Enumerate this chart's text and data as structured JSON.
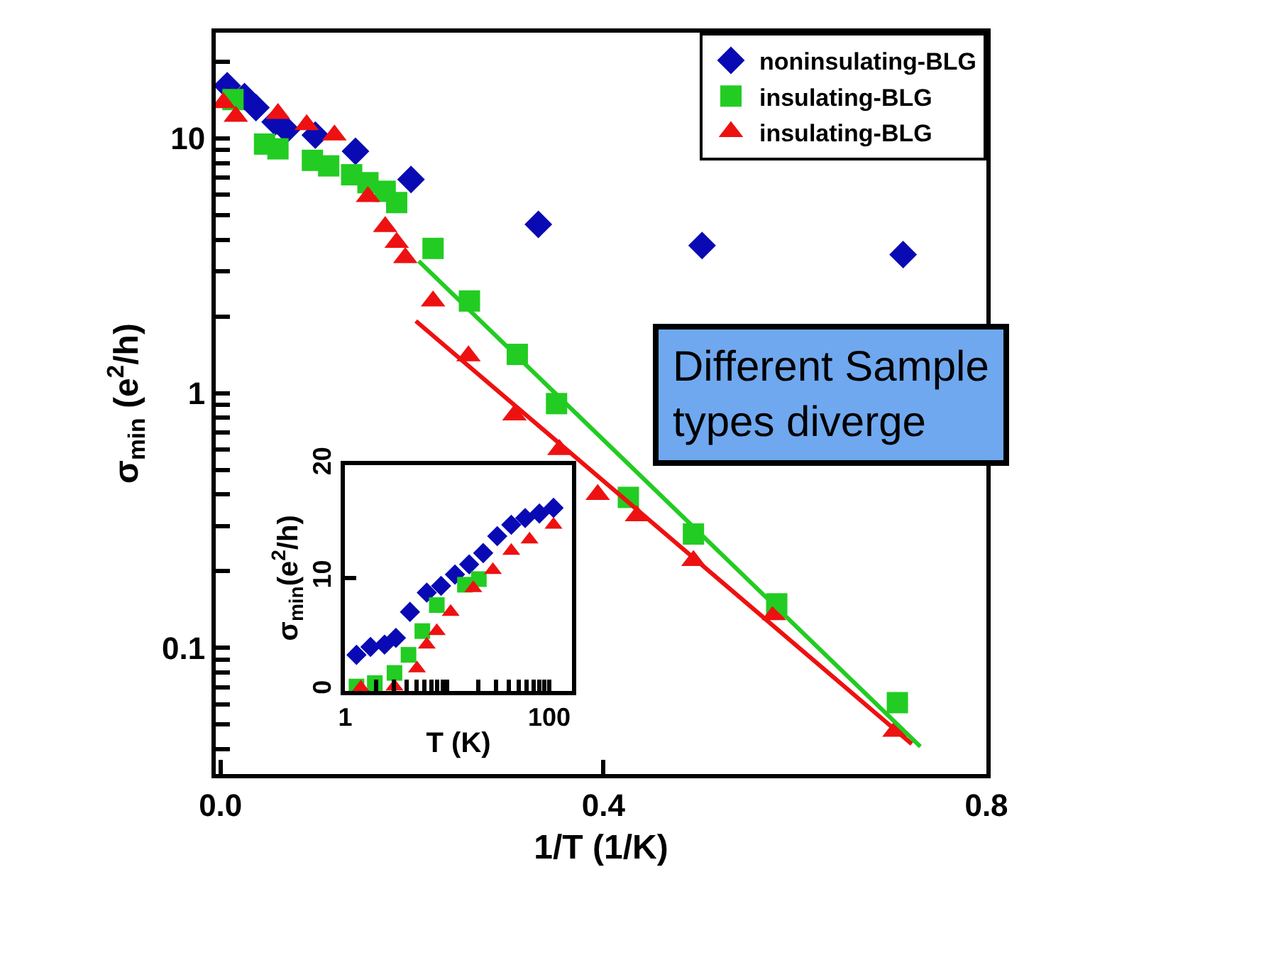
{
  "chart_data": [
    {
      "type": "scatter",
      "xlabel": "1/T (1/K)",
      "ylabel": "σ$_{min}$ (e$^{2}$/h)",
      "log": "y",
      "legend": "top right",
      "xlim": [
        -0.005,
        0.8
      ],
      "xticks": [
        {
          "value": 0,
          "label": "0.0"
        },
        0.4,
        0.8
      ],
      "ylim": [
        0.032,
        26
      ],
      "yticks": [
        {
          "value": 0.04,
          "label": null
        },
        {
          "value": 0.05,
          "label": null
        },
        {
          "value": 0.06,
          "label": null
        },
        {
          "value": 0.07,
          "label": null
        },
        {
          "value": 0.08,
          "label": null
        },
        {
          "value": 0.09,
          "label": null
        },
        0.1,
        {
          "value": 0.2,
          "label": null
        },
        {
          "value": 0.3,
          "label": null
        },
        {
          "value": 0.4,
          "label": null
        },
        {
          "value": 0.5,
          "label": null
        },
        {
          "value": 0.6,
          "label": null
        },
        {
          "value": 0.7,
          "label": null
        },
        {
          "value": 0.8,
          "label": null
        },
        {
          "value": 0.9,
          "label": null
        },
        1,
        {
          "value": 2,
          "label": null
        },
        {
          "value": 3,
          "label": null
        },
        {
          "value": 4,
          "label": null
        },
        {
          "value": 5,
          "label": null
        },
        {
          "value": 6,
          "label": null
        },
        {
          "value": 7,
          "label": null
        },
        {
          "value": 8,
          "label": null
        },
        {
          "value": 9,
          "label": null
        },
        10,
        {
          "value": 20,
          "label": null
        }
      ],
      "annotations": [
        "Different Sample types diverge"
      ],
      "series": [
        {
          "name": "noninsulating-BLG",
          "color": "#0a0ab4",
          "marker": "diamond",
          "x": [
            0.007,
            0.025,
            0.037,
            0.057,
            0.069,
            0.099,
            0.141,
            0.199,
            0.332,
            0.503,
            0.713
          ],
          "values": [
            16.1,
            14.6,
            13.2,
            11.6,
            10.8,
            10.3,
            8.9,
            6.9,
            4.6,
            3.8,
            3.5
          ]
        },
        {
          "name": "insulating-BLG",
          "color": "#22cc22",
          "marker": "square",
          "x": [
            0.013,
            0.046,
            0.06,
            0.096,
            0.113,
            0.137,
            0.154,
            0.172,
            0.184,
            0.222,
            0.26,
            0.31,
            0.351,
            0.426,
            0.494,
            0.581,
            0.707
          ],
          "values": [
            14.2,
            9.5,
            9.1,
            8.2,
            7.8,
            7.2,
            6.7,
            6.2,
            5.6,
            3.7,
            2.3,
            1.42,
            0.91,
            0.39,
            0.28,
            0.149,
            0.061
          ]
        },
        {
          "name": "insulating-BLG",
          "color": "#ee1111",
          "marker": "triangle",
          "x": [
            0.003,
            0.016,
            0.06,
            0.09,
            0.119,
            0.154,
            0.172,
            0.184,
            0.193,
            0.222,
            0.259,
            0.307,
            0.354,
            0.394,
            0.435,
            0.494,
            0.578,
            0.704
          ],
          "values": [
            13.8,
            12.2,
            12.5,
            11.3,
            10.3,
            5.9,
            4.5,
            3.9,
            3.4,
            2.3,
            1.4,
            0.82,
            0.6,
            0.4,
            0.33,
            0.22,
            0.135,
            0.047
          ]
        },
        {
          "type": "line",
          "color": "#22cc22",
          "marker": "none",
          "x": [
            0.207,
            0.731
          ],
          "values": [
            3.3,
            0.041
          ]
        },
        {
          "type": "line",
          "color": "#ee1111",
          "marker": "none",
          "x": [
            0.204,
            0.722
          ],
          "values": [
            1.92,
            0.042
          ]
        }
      ]
    },
    {
      "type": "scatter",
      "xlabel": "T (K)",
      "ylabel": "σ$_{min}$(e$^{2}$/h)",
      "log": "x",
      "legend": false,
      "xlim": [
        1,
        166
      ],
      "xticks": [
        1,
        {
          "value": 2,
          "label": null
        },
        {
          "value": 3,
          "label": null
        },
        {
          "value": 4,
          "label": null
        },
        {
          "value": 5,
          "label": null
        },
        {
          "value": 6,
          "label": null
        },
        {
          "value": 7,
          "label": null
        },
        {
          "value": 8,
          "label": null
        },
        {
          "value": 9,
          "label": null
        },
        {
          "value": 10,
          "label": null
        },
        {
          "value": 20,
          "label": null
        },
        {
          "value": 30,
          "label": null
        },
        {
          "value": 40,
          "label": null
        },
        {
          "value": 50,
          "label": null
        },
        {
          "value": 60,
          "label": null
        },
        {
          "value": 70,
          "label": null
        },
        {
          "value": 80,
          "label": null
        },
        {
          "value": 90,
          "label": null
        },
        100
      ],
      "ylim": [
        0,
        20
      ],
      "yticks": [
        0,
        10,
        20
      ],
      "series": [
        {
          "color": "#0a0ab4",
          "marker": "diamond",
          "x": [
            1.29,
            1.77,
            2.43,
            3.14,
            4.31,
            6.3,
            8.7,
            11.9,
            16.4,
            22.5,
            30.9,
            42.4,
            58,
            80,
            110
          ],
          "values": [
            3.2,
            3.9,
            4.1,
            4.7,
            7.0,
            8.7,
            9.3,
            10.3,
            11.2,
            12.2,
            13.7,
            14.7,
            15.3,
            15.7,
            16.2
          ]
        },
        {
          "color": "#22cc22",
          "marker": "square",
          "x": [
            1.29,
            1.95,
            3.04,
            4.17,
            5.7,
            7.9,
            14.9,
            20.4
          ],
          "values": [
            0.4,
            0.7,
            1.6,
            3.2,
            5.3,
            7.6,
            9.4,
            9.9
          ]
        },
        {
          "color": "#ee1111",
          "marker": "triangle",
          "x": [
            1.42,
            3.04,
            5.05,
            6.3,
            7.9,
            10.8,
            18.0,
            28.0,
            42.4,
            64,
            110
          ],
          "values": [
            0.3,
            0.4,
            2.0,
            4.1,
            5.3,
            7.0,
            9.1,
            10.7,
            12.4,
            13.4,
            14.7
          ]
        }
      ]
    }
  ]
}
